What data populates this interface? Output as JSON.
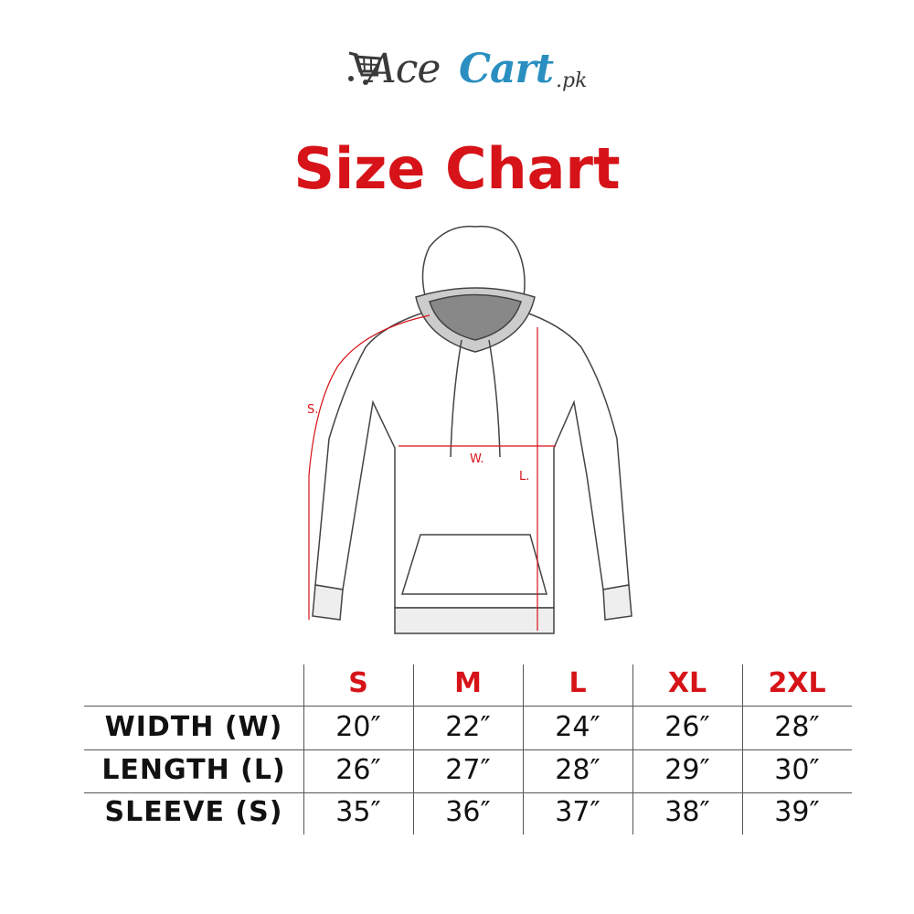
{
  "logo": {
    "part1": "Ace",
    "part2": "Cart",
    "suffix": ".pk",
    "color_dark": "#3a3a3a",
    "color_blue": "#2a8fc0"
  },
  "title": "Size Chart",
  "diagram_labels": {
    "sleeve": "S.",
    "width": "W.",
    "length": "L."
  },
  "table": {
    "sizes": [
      "S",
      "M",
      "L",
      "XL",
      "2XL"
    ],
    "rows": [
      {
        "label": "WIDTH (W)",
        "values": [
          "20″",
          "22″",
          "24″",
          "26″",
          "28″"
        ]
      },
      {
        "label": "LENGTH (L)",
        "values": [
          "26″",
          "27″",
          "28″",
          "29″",
          "30″"
        ]
      },
      {
        "label": "SLEEVE (S)",
        "values": [
          "35″",
          "36″",
          "37″",
          "38″",
          "39″"
        ]
      }
    ]
  },
  "colors": {
    "accent": "#d61318"
  }
}
